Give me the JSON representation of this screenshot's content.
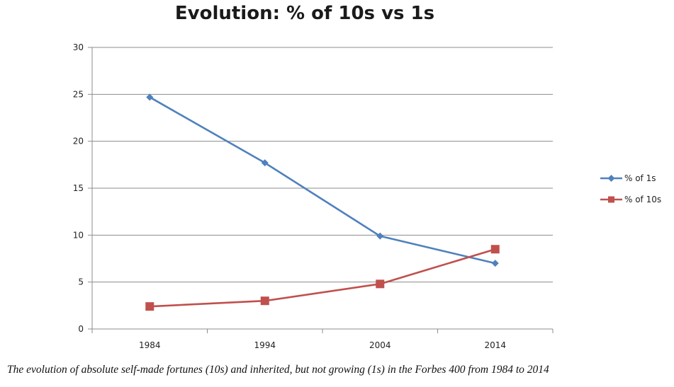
{
  "chart_data": {
    "type": "line",
    "title": "Evolution: % of 10s vs 1s",
    "xlabel": "",
    "ylabel": "",
    "categories": [
      "1984",
      "1994",
      "2004",
      "2014"
    ],
    "ylim": [
      0,
      30
    ],
    "yticks": [
      "0",
      "5",
      "10",
      "15",
      "20",
      "25",
      "30"
    ],
    "grid": true,
    "legend_position": "right",
    "series": [
      {
        "name": "% of 1s",
        "values": [
          24.7,
          17.7,
          9.9,
          7.0
        ],
        "color": "#4f81bd",
        "marker": "diamond"
      },
      {
        "name": "% of 10s",
        "values": [
          2.4,
          3.0,
          4.8,
          8.5
        ],
        "color": "#c0504d",
        "marker": "square"
      }
    ]
  },
  "caption": "The evolution of absolute self-made fortunes (10s) and inherited, but not growing (1s) in the Forbes 400 from 1984 to 2014"
}
